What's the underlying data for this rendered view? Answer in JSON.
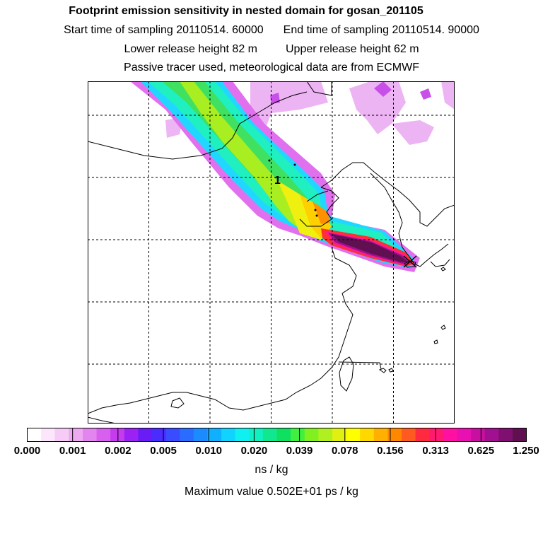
{
  "header": {
    "title": "Footprint emission sensitivity in nested domain for gosan_201105",
    "start_sampling": "Start time of sampling 20110514. 60000",
    "end_sampling": "End time of sampling 20110514. 90000",
    "lower_release": "Lower release height   82 m",
    "upper_release": "Upper release height   62 m",
    "tracer_note": "Passive tracer used, meteorological data are from ECMWF"
  },
  "map": {
    "marker_label": "1",
    "receptor_symbol": "X"
  },
  "colorbar": {
    "ticks": [
      "0.000",
      "0.001",
      "0.002",
      "0.005",
      "0.010",
      "0.020",
      "0.039",
      "0.078",
      "0.156",
      "0.313",
      "0.625",
      "1.250"
    ],
    "unit": "ns / kg",
    "colors": [
      "#ffffff",
      "#fbe6fb",
      "#f6ccf6",
      "#eeaaf0",
      "#e385ee",
      "#d860ee",
      "#c53cee",
      "#9b22f2",
      "#6a1cf6",
      "#4a2cff",
      "#3a4cff",
      "#2a6cff",
      "#1a8cff",
      "#10b0ff",
      "#10d4ff",
      "#10f0f0",
      "#10f0c0",
      "#10e890",
      "#10e060",
      "#40f040",
      "#80f020",
      "#b0f020",
      "#e0f010",
      "#ffff00",
      "#ffd800",
      "#ffb000",
      "#ff8800",
      "#ff5a20",
      "#ff2a40",
      "#ff1a70",
      "#ff10a0",
      "#e810b0",
      "#c810a0",
      "#a01090",
      "#801070",
      "#601050"
    ]
  },
  "footer": {
    "maximum": "Maximum value  0.502E+01 ps / kg"
  }
}
